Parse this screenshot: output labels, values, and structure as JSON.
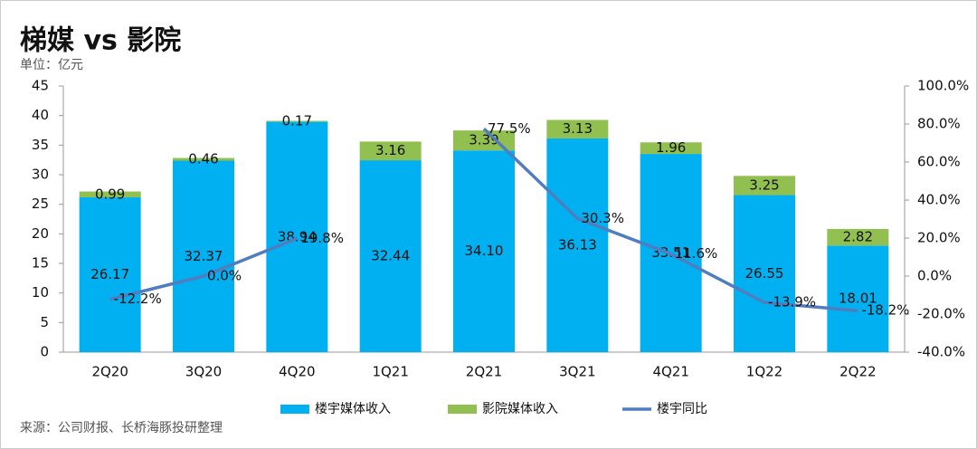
{
  "chart_data": {
    "type": "bar-line",
    "title": "梯媒 vs 影院",
    "subtitle": "单位：亿元",
    "source": "来源：公司财报、长桥海豚投研整理",
    "categories": [
      "2Q20",
      "3Q20",
      "4Q20",
      "1Q21",
      "2Q21",
      "3Q21",
      "4Q21",
      "1Q22",
      "2Q22"
    ],
    "series": [
      {
        "name": "楼宇媒体收入",
        "color": "#00b0f0",
        "type": "bar",
        "values": [
          26.17,
          32.37,
          38.94,
          32.44,
          34.1,
          36.13,
          33.51,
          26.55,
          18.01
        ],
        "value_labels": [
          "26.17",
          "32.37",
          "38.94",
          "32.44",
          "34.10",
          "36.13",
          "33.51",
          "26.55",
          "18.01"
        ]
      },
      {
        "name": "影院媒体收入",
        "color": "#92c050",
        "type": "bar",
        "values": [
          0.99,
          0.46,
          0.17,
          3.16,
          3.39,
          3.13,
          1.96,
          3.25,
          2.82
        ]
      },
      {
        "name": "楼宇同比",
        "color": "#4f7dc0",
        "type": "line",
        "axis": "y2",
        "values": [
          -12.2,
          0.0,
          19.8,
          null,
          77.5,
          30.3,
          11.6,
          -13.9,
          -18.2
        ],
        "value_labels": [
          "-12.2%",
          "0.0%",
          "19.8%",
          null,
          "77.5%",
          "30.3%",
          "11.6%",
          "-13.9%",
          "-18.2%"
        ]
      }
    ],
    "ylim": [
      0,
      45
    ],
    "yticks": [
      0,
      5,
      10,
      15,
      20,
      25,
      30,
      35,
      40,
      45
    ],
    "y2lim": [
      -40,
      100
    ],
    "y2ticks": [
      {
        "value": -40,
        "label": "-40.0%"
      },
      {
        "value": -20,
        "label": "-20.0%"
      },
      {
        "value": 0,
        "label": "0.0%"
      },
      {
        "value": 20,
        "label": "20.0%"
      },
      {
        "value": 40,
        "label": "40.0%"
      },
      {
        "value": 60,
        "label": "60.0%"
      },
      {
        "value": 80,
        "label": "80.0%"
      },
      {
        "value": 100,
        "label": "100.0%"
      }
    ],
    "stacked": true,
    "legend": "bottom"
  }
}
